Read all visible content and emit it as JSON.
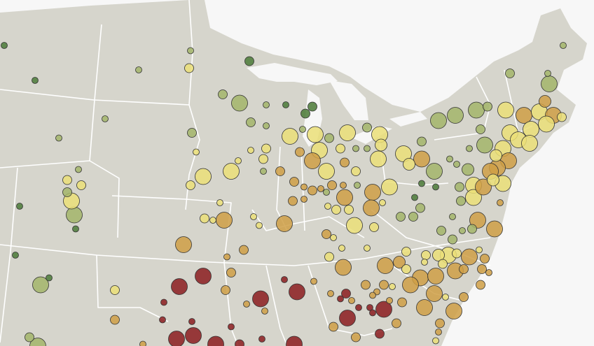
{
  "map": {
    "background_color": "#f7f7f7",
    "land_color": "#d6d5cc",
    "border_color": "#ffffff",
    "categories": {
      "g": {
        "color": "#4b7a37"
      },
      "lg": {
        "color": "#a3b56a"
      },
      "y": {
        "color": "#ebdf78"
      },
      "o": {
        "color": "#cf9f45"
      },
      "r": {
        "color": "#8b1c1f"
      }
    },
    "size_levels": 4,
    "points_fields": [
      "lon",
      "lat",
      "size_level",
      "category"
    ],
    "points": [
      [
        -105.7,
        47.4,
        1,
        "g"
      ],
      [
        -103.5,
        45.4,
        1,
        "g"
      ],
      [
        -92.4,
        47.1,
        1,
        "lg"
      ],
      [
        -96.1,
        46.0,
        1,
        "lg"
      ],
      [
        -92.5,
        46.1,
        2,
        "y"
      ],
      [
        -88.2,
        46.5,
        2,
        "g"
      ],
      [
        -90.1,
        44.6,
        2,
        "lg"
      ],
      [
        -88.9,
        44.1,
        4,
        "lg"
      ],
      [
        -87.0,
        44.0,
        1,
        "lg"
      ],
      [
        -85.6,
        44.0,
        1,
        "g"
      ],
      [
        -83.7,
        43.9,
        2,
        "g"
      ],
      [
        -84.2,
        43.5,
        2,
        "g"
      ],
      [
        -88.1,
        43.0,
        2,
        "lg"
      ],
      [
        -87.0,
        42.8,
        1,
        "lg"
      ],
      [
        -98.5,
        43.2,
        1,
        "lg"
      ],
      [
        -101.8,
        42.1,
        1,
        "lg"
      ],
      [
        -92.3,
        42.4,
        2,
        "lg"
      ],
      [
        -92.0,
        41.3,
        1,
        "y"
      ],
      [
        -85.3,
        42.2,
        4,
        "y"
      ],
      [
        -83.5,
        42.3,
        4,
        "y"
      ],
      [
        -83.2,
        41.4,
        4,
        "y"
      ],
      [
        -81.2,
        42.4,
        4,
        "y"
      ],
      [
        -79.8,
        42.7,
        2,
        "lg"
      ],
      [
        -78.9,
        42.3,
        4,
        "y"
      ],
      [
        -78.8,
        41.7,
        3,
        "y"
      ],
      [
        -79.8,
        41.5,
        1,
        "lg"
      ],
      [
        -80.6,
        41.5,
        1,
        "lg"
      ],
      [
        -81.7,
        41.5,
        2,
        "y"
      ],
      [
        -82.5,
        42.1,
        2,
        "lg"
      ],
      [
        -84.4,
        42.6,
        1,
        "lg"
      ],
      [
        -84.6,
        41.3,
        2,
        "o"
      ],
      [
        -83.7,
        40.8,
        4,
        "o"
      ],
      [
        -82.7,
        40.2,
        4,
        "y"
      ],
      [
        -81.4,
        40.7,
        2,
        "o"
      ],
      [
        -80.6,
        40.2,
        2,
        "y"
      ],
      [
        -79.0,
        40.9,
        4,
        "y"
      ],
      [
        -77.2,
        41.2,
        4,
        "y"
      ],
      [
        -76.8,
        40.6,
        3,
        "y"
      ],
      [
        -75.9,
        41.9,
        2,
        "lg"
      ],
      [
        -75.9,
        40.9,
        4,
        "o"
      ],
      [
        -75.0,
        40.2,
        4,
        "lg"
      ],
      [
        -74.7,
        43.1,
        4,
        "lg"
      ],
      [
        -73.5,
        43.4,
        4,
        "lg"
      ],
      [
        -72.0,
        43.7,
        4,
        "lg"
      ],
      [
        -71.2,
        43.9,
        2,
        "lg"
      ],
      [
        -69.9,
        43.7,
        4,
        "y"
      ],
      [
        -69.6,
        45.8,
        2,
        "lg"
      ],
      [
        -66.8,
        45.2,
        4,
        "lg"
      ],
      [
        -66.9,
        45.8,
        1,
        "lg"
      ],
      [
        -65.8,
        47.4,
        1,
        "lg"
      ],
      [
        -67.1,
        44.2,
        3,
        "o"
      ],
      [
        -68.6,
        43.4,
        4,
        "o"
      ],
      [
        -67.5,
        43.6,
        4,
        "y"
      ],
      [
        -66.5,
        43.4,
        4,
        "o"
      ],
      [
        -65.9,
        43.3,
        2,
        "y"
      ],
      [
        -68.1,
        42.6,
        4,
        "y"
      ],
      [
        -67.0,
        42.9,
        4,
        "y"
      ],
      [
        -69.6,
        42.4,
        4,
        "y"
      ],
      [
        -71.4,
        41.7,
        4,
        "lg"
      ],
      [
        -70.1,
        41.5,
        4,
        "y"
      ],
      [
        -69.0,
        42.0,
        4,
        "y"
      ],
      [
        -68.2,
        41.8,
        4,
        "y"
      ],
      [
        -70.6,
        41.1,
        3,
        "y"
      ],
      [
        -69.7,
        40.8,
        4,
        "o"
      ],
      [
        -70.5,
        40.4,
        4,
        "o"
      ],
      [
        -71.0,
        40.2,
        4,
        "o"
      ],
      [
        -70.1,
        39.5,
        4,
        "y"
      ],
      [
        -70.8,
        39.7,
        3,
        "y"
      ],
      [
        -72.2,
        39.4,
        4,
        "y"
      ],
      [
        -72.2,
        38.7,
        4,
        "y"
      ],
      [
        -71.5,
        39.3,
        4,
        "o"
      ],
      [
        -70.3,
        38.4,
        1,
        "o"
      ],
      [
        -73.4,
        40.6,
        1,
        "lg"
      ],
      [
        -72.6,
        40.3,
        3,
        "lg"
      ],
      [
        -71.7,
        42.6,
        2,
        "lg"
      ],
      [
        -72.5,
        41.5,
        1,
        "lg"
      ],
      [
        -73.9,
        40.9,
        1,
        "lg"
      ],
      [
        -73.2,
        39.3,
        2,
        "lg"
      ],
      [
        -74.9,
        39.3,
        1,
        "g"
      ],
      [
        -75.9,
        39.5,
        1,
        "g"
      ],
      [
        -76.4,
        38.7,
        1,
        "g"
      ],
      [
        -76.0,
        38.1,
        2,
        "lg"
      ],
      [
        -77.4,
        37.6,
        2,
        "lg"
      ],
      [
        -76.5,
        37.6,
        2,
        "lg"
      ],
      [
        -73.1,
        38.5,
        2,
        "lg"
      ],
      [
        -73.7,
        37.6,
        1,
        "lg"
      ],
      [
        -71.9,
        37.4,
        4,
        "o"
      ],
      [
        -70.7,
        36.9,
        4,
        "o"
      ],
      [
        -72.3,
        36.9,
        2,
        "lg"
      ],
      [
        -73.0,
        36.8,
        1,
        "lg"
      ],
      [
        -73.7,
        36.3,
        2,
        "lg"
      ],
      [
        -74.5,
        36.8,
        2,
        "lg"
      ],
      [
        -87.0,
        41.5,
        2,
        "y"
      ],
      [
        -88.1,
        41.4,
        1,
        "y"
      ],
      [
        -87.2,
        40.9,
        2,
        "y"
      ],
      [
        -89.0,
        40.8,
        1,
        "y"
      ],
      [
        -89.5,
        40.2,
        4,
        "y"
      ],
      [
        -91.5,
        39.9,
        4,
        "y"
      ],
      [
        -92.4,
        39.4,
        2,
        "y"
      ],
      [
        -87.2,
        40.2,
        1,
        "lg"
      ],
      [
        -86.0,
        40.2,
        2,
        "o"
      ],
      [
        -85.0,
        39.6,
        2,
        "o"
      ],
      [
        -84.3,
        39.3,
        1,
        "o"
      ],
      [
        -83.7,
        39.1,
        2,
        "o"
      ],
      [
        -83.1,
        39.2,
        1,
        "o"
      ],
      [
        -82.3,
        39.4,
        2,
        "o"
      ],
      [
        -81.5,
        39.4,
        1,
        "o"
      ],
      [
        -80.5,
        39.4,
        1,
        "lg"
      ],
      [
        -79.4,
        39.0,
        4,
        "o"
      ],
      [
        -78.2,
        39.3,
        4,
        "y"
      ],
      [
        -78.7,
        38.4,
        1,
        "y"
      ],
      [
        -79.5,
        38.1,
        4,
        "o"
      ],
      [
        -81.4,
        38.7,
        4,
        "o"
      ],
      [
        -81.1,
        38.0,
        2,
        "y"
      ],
      [
        -82.0,
        38.0,
        2,
        "y"
      ],
      [
        -82.6,
        38.2,
        1,
        "y"
      ],
      [
        -82.7,
        39.0,
        1,
        "lg"
      ],
      [
        -85.1,
        38.5,
        2,
        "o"
      ],
      [
        -84.3,
        38.6,
        1,
        "o"
      ],
      [
        -90.3,
        38.4,
        1,
        "y"
      ],
      [
        -91.4,
        37.5,
        2,
        "y"
      ],
      [
        -90.8,
        37.4,
        1,
        "y"
      ],
      [
        -90.0,
        37.4,
        4,
        "o"
      ],
      [
        -87.9,
        37.6,
        1,
        "y"
      ],
      [
        -87.5,
        37.1,
        1,
        "y"
      ],
      [
        -85.7,
        37.2,
        4,
        "o"
      ],
      [
        -80.7,
        37.1,
        4,
        "y"
      ],
      [
        -79.3,
        37.0,
        2,
        "y"
      ],
      [
        -82.7,
        36.6,
        2,
        "o"
      ],
      [
        -82.2,
        36.4,
        1,
        "y"
      ],
      [
        -81.6,
        35.8,
        1,
        "y"
      ],
      [
        -79.8,
        35.8,
        1,
        "y"
      ],
      [
        -92.9,
        36.0,
        4,
        "o"
      ],
      [
        -88.6,
        35.7,
        2,
        "o"
      ],
      [
        -89.8,
        35.3,
        1,
        "o"
      ],
      [
        -89.5,
        34.4,
        2,
        "o"
      ],
      [
        -82.5,
        35.3,
        2,
        "y"
      ],
      [
        -81.5,
        34.7,
        4,
        "o"
      ],
      [
        -78.5,
        34.8,
        4,
        "o"
      ],
      [
        -77.5,
        35.0,
        3,
        "o"
      ],
      [
        -77.0,
        35.6,
        2,
        "y"
      ],
      [
        -75.6,
        35.4,
        2,
        "y"
      ],
      [
        -74.7,
        35.4,
        3,
        "y"
      ],
      [
        -74.0,
        35.4,
        4,
        "y"
      ],
      [
        -73.4,
        35.5,
        2,
        "y"
      ],
      [
        -72.5,
        35.3,
        4,
        "o"
      ],
      [
        -71.8,
        35.7,
        1,
        "y"
      ],
      [
        -71.4,
        35.2,
        2,
        "o"
      ],
      [
        -72.9,
        34.6,
        2,
        "o"
      ],
      [
        -71.6,
        34.6,
        2,
        "o"
      ],
      [
        -73.5,
        34.5,
        4,
        "o"
      ],
      [
        -74.4,
        34.9,
        2,
        "y"
      ],
      [
        -75.7,
        35.0,
        1,
        "y"
      ],
      [
        -77.0,
        34.6,
        2,
        "y"
      ],
      [
        -76.0,
        34.1,
        4,
        "o"
      ],
      [
        -76.7,
        33.7,
        4,
        "o"
      ],
      [
        -74.9,
        34.2,
        4,
        "o"
      ],
      [
        -71.7,
        33.7,
        2,
        "o"
      ],
      [
        -71.1,
        34.4,
        1,
        "o"
      ],
      [
        -74.2,
        33.0,
        1,
        "y"
      ],
      [
        -75.0,
        33.2,
        4,
        "o"
      ],
      [
        -75.7,
        32.4,
        4,
        "o"
      ],
      [
        -73.6,
        32.2,
        4,
        "o"
      ],
      [
        -72.9,
        33.0,
        2,
        "o"
      ],
      [
        -78.0,
        33.6,
        1,
        "y"
      ],
      [
        -78.6,
        33.7,
        2,
        "o"
      ],
      [
        -79.1,
        33.3,
        1,
        "o"
      ],
      [
        -79.9,
        33.7,
        2,
        "o"
      ],
      [
        -79.4,
        33.1,
        1,
        "o"
      ],
      [
        -77.3,
        32.7,
        2,
        "o"
      ],
      [
        -78.2,
        32.8,
        1,
        "o"
      ],
      [
        -78.6,
        32.3,
        4,
        "r"
      ],
      [
        -79.6,
        32.4,
        1,
        "r"
      ],
      [
        -80.4,
        32.4,
        1,
        "r"
      ],
      [
        -79.4,
        32.1,
        1,
        "r"
      ],
      [
        -81.3,
        33.2,
        2,
        "r"
      ],
      [
        -81.7,
        32.9,
        1,
        "r"
      ],
      [
        -80.9,
        32.8,
        1,
        "o"
      ],
      [
        -82.4,
        33.2,
        1,
        "o"
      ],
      [
        -81.2,
        31.8,
        4,
        "r"
      ],
      [
        -82.2,
        31.3,
        2,
        "o"
      ],
      [
        -80.6,
        30.7,
        2,
        "o"
      ],
      [
        -78.9,
        30.9,
        2,
        "r"
      ],
      [
        -77.7,
        31.5,
        2,
        "o"
      ],
      [
        -74.6,
        31.5,
        2,
        "o"
      ],
      [
        -74.7,
        31.0,
        1,
        "o"
      ],
      [
        -74.9,
        30.5,
        1,
        "y"
      ],
      [
        -83.6,
        33.9,
        1,
        "o"
      ],
      [
        -84.8,
        33.3,
        4,
        "r"
      ],
      [
        -85.7,
        34.0,
        1,
        "r"
      ],
      [
        -87.4,
        32.9,
        4,
        "r"
      ],
      [
        -87.1,
        32.2,
        1,
        "o"
      ],
      [
        -88.4,
        32.6,
        1,
        "o"
      ],
      [
        -89.9,
        33.4,
        2,
        "o"
      ],
      [
        -91.5,
        34.2,
        4,
        "r"
      ],
      [
        -93.2,
        33.6,
        4,
        "r"
      ],
      [
        -94.3,
        32.7,
        1,
        "r"
      ],
      [
        -94.4,
        31.7,
        1,
        "r"
      ],
      [
        -92.3,
        31.6,
        1,
        "r"
      ],
      [
        -93.4,
        30.6,
        4,
        "r"
      ],
      [
        -92.2,
        30.8,
        4,
        "r"
      ],
      [
        -90.6,
        30.3,
        4,
        "r"
      ],
      [
        -88.9,
        30.3,
        2,
        "r"
      ],
      [
        -89.5,
        31.3,
        1,
        "r"
      ],
      [
        -87.3,
        30.6,
        1,
        "r"
      ],
      [
        -85.0,
        30.3,
        4,
        "r"
      ],
      [
        -97.8,
        33.4,
        2,
        "y"
      ],
      [
        -97.8,
        31.7,
        2,
        "o"
      ],
      [
        -95.8,
        30.3,
        1,
        "o"
      ],
      [
        -103.9,
        30.7,
        2,
        "lg"
      ],
      [
        -103.3,
        30.2,
        4,
        "lg"
      ],
      [
        -103.1,
        33.7,
        4,
        "lg"
      ],
      [
        -102.5,
        34.1,
        1,
        "g"
      ],
      [
        -104.9,
        35.4,
        1,
        "g"
      ],
      [
        -100.6,
        36.9,
        1,
        "g"
      ],
      [
        -100.7,
        37.7,
        4,
        "lg"
      ],
      [
        -100.9,
        38.5,
        4,
        "y"
      ],
      [
        -101.2,
        39.0,
        2,
        "lg"
      ],
      [
        -101.2,
        39.7,
        2,
        "y"
      ],
      [
        -100.2,
        39.4,
        2,
        "y"
      ],
      [
        -100.4,
        40.3,
        1,
        "lg"
      ],
      [
        -104.6,
        38.2,
        1,
        "g"
      ]
    ]
  }
}
